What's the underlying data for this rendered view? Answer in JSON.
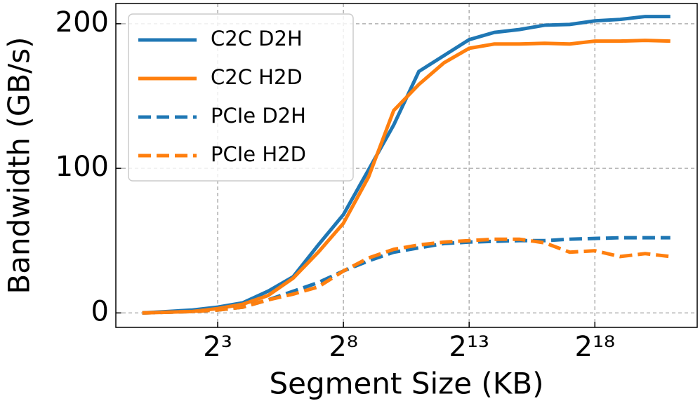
{
  "chart_data": {
    "type": "line",
    "xlabel": "Segment Size (KB)",
    "ylabel": "Bandwidth (GB/s)",
    "x": [
      1,
      2,
      4,
      8,
      16,
      32,
      64,
      128,
      256,
      512,
      1024,
      2048,
      4096,
      8192,
      16384,
      32768,
      65536,
      131072,
      262144,
      524288,
      1048576,
      2097152
    ],
    "series": [
      {
        "name": "C2C D2H",
        "color": "#1f77b4",
        "linestyle": "solid",
        "values": [
          0,
          1,
          2,
          4,
          7,
          15,
          25,
          47,
          68,
          99,
          130,
          167,
          178,
          189,
          194,
          196,
          199,
          199.5,
          202,
          203,
          205,
          205
        ]
      },
      {
        "name": "C2C H2D",
        "color": "#ff7f0e",
        "linestyle": "solid",
        "values": [
          0,
          0.5,
          1,
          3,
          6,
          12,
          24,
          42,
          62,
          94,
          140,
          158,
          173,
          183,
          186,
          186,
          186.5,
          186,
          188,
          188,
          188.5,
          188
        ]
      },
      {
        "name": "PCIe D2H",
        "color": "#1f77b4",
        "linestyle": "dashed",
        "values": [
          0,
          0.5,
          1,
          2,
          4,
          9,
          15,
          21,
          29,
          36,
          42,
          45,
          48,
          49,
          49.5,
          50,
          50,
          51,
          51.5,
          52,
          52,
          52
        ]
      },
      {
        "name": "PCIe H2D",
        "color": "#ff7f0e",
        "linestyle": "dashed",
        "values": [
          0,
          0.5,
          1,
          2,
          4,
          9,
          13,
          18,
          29,
          38,
          44,
          47,
          49,
          50,
          51,
          51,
          48.5,
          42,
          43,
          39,
          41,
          39
        ]
      }
    ],
    "xscale": "log",
    "xbase": 2,
    "xlim": [
      0.483,
      4400000
    ],
    "xticks": [
      {
        "value": 8,
        "label": "2³"
      },
      {
        "value": 256,
        "label": "2⁸"
      },
      {
        "value": 8192,
        "label": "2¹³"
      },
      {
        "value": 262144,
        "label": "2¹⁸"
      }
    ],
    "ylim": [
      -10,
      214
    ],
    "yticks": [
      0,
      100,
      200
    ],
    "grid": true,
    "legend": "upper left"
  }
}
